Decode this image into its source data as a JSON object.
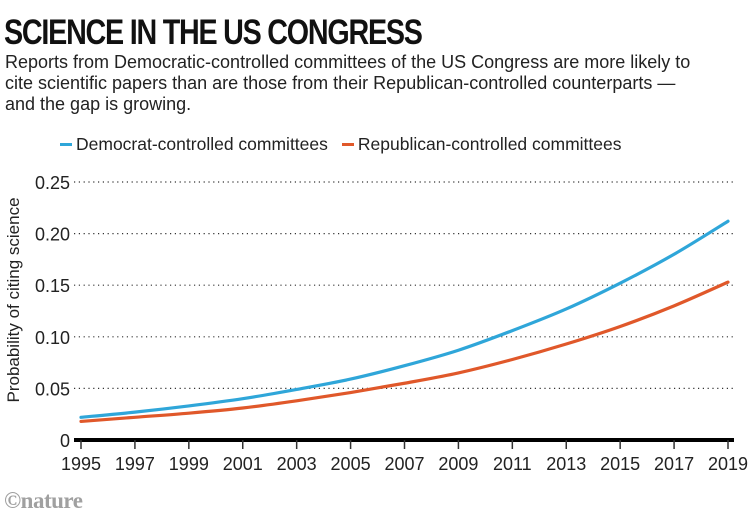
{
  "header": {
    "title": "SCIENCE IN THE US CONGRESS",
    "subtitle": "Reports from Democratic-controlled committees of the US Congress are more likely to cite scientific papers than are those from their Republican-controlled counterparts — and the gap is growing."
  },
  "credit": "©nature",
  "chart_data": {
    "type": "line",
    "title": "SCIENCE IN THE US CONGRESS",
    "xlabel": "",
    "ylabel": "Probability of citing science",
    "xlim": [
      1995,
      2019
    ],
    "ylim": [
      0,
      0.25
    ],
    "grid": true,
    "legend_position": "top",
    "x_ticks": [
      1995,
      1997,
      1999,
      2001,
      2003,
      2005,
      2007,
      2009,
      2011,
      2013,
      2015,
      2017,
      2019
    ],
    "x_tick_labels": [
      "1995",
      "1997",
      "1999",
      "2001",
      "2003",
      "2005",
      "2007",
      "2009",
      "2011",
      "2013",
      "2015",
      "2017",
      "2019"
    ],
    "y_ticks": [
      0,
      0.05,
      0.1,
      0.15,
      0.2,
      0.25
    ],
    "y_tick_labels": [
      "0",
      "0.05",
      "0.10",
      "0.15",
      "0.20",
      "0.25"
    ],
    "x": [
      1995,
      1997,
      1999,
      2001,
      2003,
      2005,
      2007,
      2009,
      2011,
      2013,
      2015,
      2017,
      2019
    ],
    "series": [
      {
        "name": "Democrat-controlled committees",
        "color": "#2fa6d9",
        "values": [
          0.022,
          0.027,
          0.033,
          0.04,
          0.049,
          0.059,
          0.072,
          0.087,
          0.106,
          0.127,
          0.152,
          0.18,
          0.212
        ]
      },
      {
        "name": "Republican-controlled committees",
        "color": "#e0582a",
        "values": [
          0.018,
          0.022,
          0.026,
          0.031,
          0.038,
          0.046,
          0.055,
          0.065,
          0.078,
          0.093,
          0.11,
          0.13,
          0.153
        ]
      }
    ]
  }
}
